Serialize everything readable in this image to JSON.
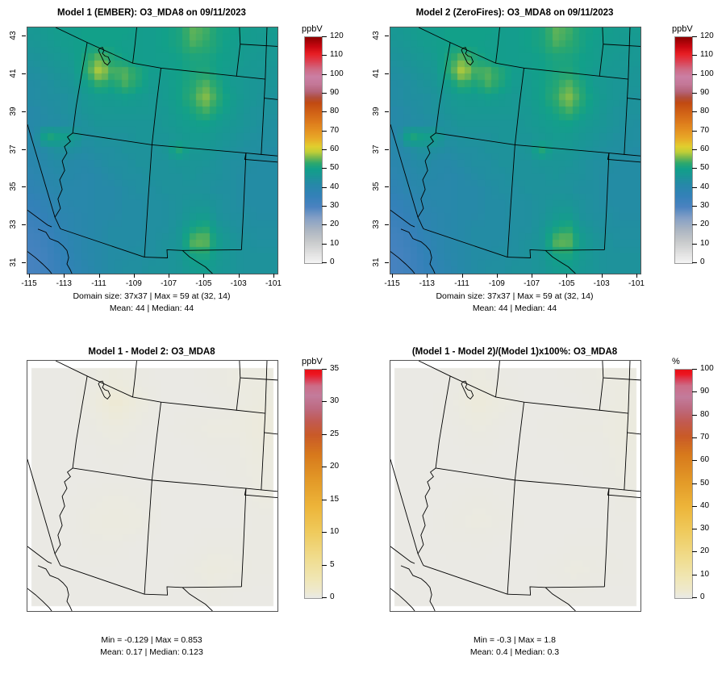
{
  "figure": {
    "description": "Four-panel model comparison maps of O3_MDA8 over the southwestern US"
  },
  "panels": [
    {
      "title": "Model 1 (EMBER): O3_MDA8 on 09/11/2023",
      "stats1": "Domain size: 37x37 | Max = 59 at (32, 14)",
      "stats2": "Mean: 44 |  Median: 44",
      "unit": "ppbV"
    },
    {
      "title": "Model 2 (ZeroFires): O3_MDA8 on 09/11/2023",
      "stats1": "Domain size: 37x37 | Max = 59 at (32, 14)",
      "stats2": "Mean: 44 |  Median: 44",
      "unit": "ppbV"
    },
    {
      "title": "Model 1 - Model 2: O3_MDA8",
      "stats1": "Min = -0.129 | Max = 0.853",
      "stats2": "Mean: 0.17 |  Median: 0.123",
      "unit": "ppbV"
    },
    {
      "title": "(Model 1 - Model 2)/(Model 1)x100%: O3_MDA8",
      "stats1": "Min = -0.3 | Max = 1.8",
      "stats2": "Mean: 0.4 |  Median: 0.3",
      "unit": "%"
    }
  ],
  "axes": {
    "x_labels": [
      "-115",
      "-113",
      "-111",
      "-109",
      "-107",
      "-105",
      "-103",
      "-101"
    ],
    "x_values": [
      -115,
      -113,
      -111,
      -109,
      -107,
      -105,
      -103,
      -101
    ],
    "y_labels": [
      "31",
      "33",
      "35",
      "37",
      "39",
      "41",
      "43"
    ],
    "y_values": [
      31,
      33,
      35,
      37,
      39,
      41,
      43
    ]
  },
  "chart_data": [
    {
      "type": "heatmap",
      "title": "Model 1 (EMBER): O3_MDA8 on 09/11/2023",
      "unit": "ppbV",
      "vmin": 0,
      "vmax": 120,
      "cbar_ticks": [
        0,
        10,
        20,
        30,
        40,
        50,
        60,
        70,
        80,
        90,
        100,
        110,
        120
      ],
      "grid": "o3",
      "colormap_ref": "o3",
      "stats": {
        "domain_size": "37x37",
        "max": 59,
        "max_at": "(32, 14)",
        "mean": 44,
        "median": 44
      },
      "x_range": [
        -115,
        -101
      ],
      "y_range": [
        31,
        43
      ]
    },
    {
      "type": "heatmap",
      "title": "Model 2 (ZeroFires): O3_MDA8 on 09/11/2023",
      "unit": "ppbV",
      "vmin": 0,
      "vmax": 120,
      "cbar_ticks": [
        0,
        10,
        20,
        30,
        40,
        50,
        60,
        70,
        80,
        90,
        100,
        110,
        120
      ],
      "grid": "o3",
      "colormap_ref": "o3",
      "stats": {
        "domain_size": "37x37",
        "max": 59,
        "max_at": "(32, 14)",
        "mean": 44,
        "median": 44
      },
      "x_range": [
        -115,
        -101
      ],
      "y_range": [
        31,
        43
      ]
    },
    {
      "type": "heatmap",
      "title": "Model 1 - Model 2: O3_MDA8",
      "unit": "ppbV",
      "vmin": 0,
      "vmax": 35,
      "cbar_ticks": [
        0,
        5,
        10,
        15,
        20,
        25,
        30,
        35
      ],
      "grid": "diff",
      "colormap_ref": "diff",
      "stats": {
        "min": -0.129,
        "max": 0.853,
        "mean": 0.17,
        "median": 0.123
      }
    },
    {
      "type": "heatmap",
      "title": "(Model 1 - Model 2)/(Model 1)x100%: O3_MDA8",
      "unit": "%",
      "vmin": 0,
      "vmax": 100,
      "cbar_ticks": [
        0,
        10,
        20,
        30,
        40,
        50,
        60,
        70,
        80,
        90,
        100
      ],
      "grid": "pct",
      "colormap_ref": "pct",
      "stats": {
        "min": -0.3,
        "max": 1.8,
        "mean": 0.4,
        "median": 0.3
      }
    }
  ],
  "colormaps": {
    "o3": [
      [
        0,
        "#f4f4f4"
      ],
      [
        6,
        "#dedede"
      ],
      [
        12,
        "#c6c8ca"
      ],
      [
        18,
        "#aab4c2"
      ],
      [
        24,
        "#84a0c6"
      ],
      [
        30,
        "#4a82c0"
      ],
      [
        36,
        "#3381b8"
      ],
      [
        42,
        "#2689a8"
      ],
      [
        46,
        "#1b9597"
      ],
      [
        50,
        "#12a089"
      ],
      [
        53,
        "#2ca86e"
      ],
      [
        56,
        "#76b84e"
      ],
      [
        59,
        "#c0cf38"
      ],
      [
        62,
        "#e2ce2e"
      ],
      [
        66,
        "#e8ab28"
      ],
      [
        70,
        "#e59422"
      ],
      [
        75,
        "#dd7a1c"
      ],
      [
        80,
        "#d16216"
      ],
      [
        85,
        "#c24a12"
      ],
      [
        88,
        "#b14f3e"
      ],
      [
        91,
        "#b56478"
      ],
      [
        95,
        "#c47898"
      ],
      [
        99,
        "#cb7fa4"
      ],
      [
        103,
        "#cf6a84"
      ],
      [
        107,
        "#dd4052"
      ],
      [
        111,
        "#e81f25"
      ],
      [
        115,
        "#c80710"
      ],
      [
        120,
        "#8c0000"
      ]
    ],
    "diff": [
      [
        0,
        "#e9e9e6"
      ],
      [
        0.5,
        "#eceadc"
      ],
      [
        1,
        "#eee9d0"
      ],
      [
        3,
        "#f0e6b4"
      ],
      [
        6,
        "#f0dd90"
      ],
      [
        10,
        "#efcb5e"
      ],
      [
        14,
        "#edb53a"
      ],
      [
        18,
        "#e39a28"
      ],
      [
        22,
        "#d7791c"
      ],
      [
        25,
        "#c95a28"
      ],
      [
        27,
        "#c25a50"
      ],
      [
        29,
        "#bd6a80"
      ],
      [
        31,
        "#c37c9c"
      ],
      [
        32.5,
        "#cd6d88"
      ],
      [
        33.5,
        "#dd3a50"
      ],
      [
        34.3,
        "#ee1520"
      ],
      [
        35,
        "#e60f15"
      ]
    ],
    "pct": [
      [
        0,
        "#e9e9e6"
      ],
      [
        1.5,
        "#eceadc"
      ],
      [
        3,
        "#eee9d0"
      ],
      [
        9,
        "#f0e6b4"
      ],
      [
        17,
        "#f0dd90"
      ],
      [
        29,
        "#efcb5e"
      ],
      [
        40,
        "#edb53a"
      ],
      [
        51,
        "#e39a28"
      ],
      [
        63,
        "#d7791c"
      ],
      [
        71,
        "#c95a28"
      ],
      [
        77,
        "#c25a50"
      ],
      [
        83,
        "#bd6a80"
      ],
      [
        88,
        "#c37c9c"
      ],
      [
        93,
        "#cd6d88"
      ],
      [
        96,
        "#dd3a50"
      ],
      [
        98,
        "#ee1520"
      ],
      [
        100,
        "#e60f15"
      ]
    ]
  },
  "grids": {
    "o3": [
      [
        47,
        48,
        49,
        49,
        50,
        50,
        50,
        50,
        49,
        49,
        50,
        51,
        55,
        54,
        51,
        50,
        49,
        48,
        48
      ],
      [
        46,
        47,
        48,
        49,
        50,
        50,
        50,
        49,
        49,
        49,
        50,
        51,
        54,
        53,
        51,
        49,
        48,
        48,
        47
      ],
      [
        45,
        46,
        47,
        48,
        52,
        56,
        52,
        50,
        49,
        49,
        49,
        50,
        51,
        51,
        50,
        49,
        48,
        47,
        47
      ],
      [
        44,
        45,
        46,
        47,
        53,
        59,
        54,
        55,
        52,
        49,
        49,
        50,
        51,
        52,
        50,
        48,
        47,
        47,
        46
      ],
      [
        43,
        44,
        45,
        46,
        49,
        53,
        51,
        54,
        51,
        48,
        48,
        50,
        52,
        55,
        52,
        48,
        47,
        46,
        46
      ],
      [
        43,
        44,
        44,
        45,
        47,
        48,
        48,
        49,
        48,
        47,
        48,
        50,
        53,
        57,
        53,
        49,
        47,
        46,
        45
      ],
      [
        42,
        43,
        44,
        45,
        46,
        47,
        47,
        47,
        47,
        47,
        47,
        49,
        51,
        54,
        51,
        48,
        46,
        45,
        45
      ],
      [
        42,
        43,
        43,
        44,
        45,
        46,
        46,
        46,
        46,
        46,
        47,
        48,
        49,
        50,
        48,
        47,
        46,
        45,
        44
      ],
      [
        41,
        52,
        50,
        48,
        44,
        45,
        45,
        45,
        46,
        46,
        46,
        47,
        48,
        48,
        47,
        46,
        45,
        44,
        44
      ],
      [
        41,
        43,
        45,
        44,
        43,
        44,
        44,
        45,
        45,
        45,
        46,
        52,
        47,
        47,
        46,
        45,
        44,
        44,
        43
      ],
      [
        40,
        42,
        43,
        42,
        42,
        43,
        44,
        44,
        45,
        45,
        45,
        46,
        46,
        46,
        45,
        44,
        44,
        43,
        43
      ],
      [
        39,
        41,
        42,
        42,
        41,
        42,
        43,
        44,
        44,
        45,
        45,
        45,
        46,
        45,
        45,
        44,
        43,
        43,
        43
      ],
      [
        38,
        40,
        41,
        41,
        41,
        42,
        42,
        43,
        44,
        44,
        45,
        45,
        45,
        45,
        44,
        44,
        43,
        43,
        43
      ],
      [
        36,
        38,
        40,
        41,
        41,
        42,
        42,
        43,
        43,
        44,
        44,
        45,
        46,
        46,
        45,
        44,
        43,
        43,
        43
      ],
      [
        35,
        37,
        39,
        40,
        41,
        42,
        42,
        43,
        43,
        44,
        44,
        45,
        47,
        48,
        45,
        44,
        44,
        43,
        43
      ],
      [
        33,
        35,
        38,
        40,
        41,
        42,
        43,
        43,
        43,
        44,
        44,
        46,
        50,
        53,
        47,
        45,
        44,
        44,
        44
      ],
      [
        32,
        34,
        37,
        39,
        41,
        42,
        43,
        43,
        43,
        44,
        45,
        46,
        55,
        56,
        49,
        46,
        45,
        44,
        44
      ],
      [
        31,
        33,
        36,
        39,
        41,
        42,
        43,
        43,
        44,
        44,
        45,
        46,
        51,
        52,
        48,
        46,
        45,
        45,
        45
      ],
      [
        31,
        33,
        35,
        38,
        40,
        42,
        43,
        44,
        44,
        45,
        45,
        46,
        48,
        49,
        47,
        46,
        45,
        45,
        45
      ]
    ],
    "diff": [
      [
        0.1,
        0.1,
        0.2,
        0.4,
        0.2,
        0.1,
        0.1,
        0.2,
        0.3,
        0.3
      ],
      [
        0.1,
        0.1,
        0.3,
        0.85,
        0.4,
        0.1,
        0.1,
        0.1,
        0.2,
        0.4
      ],
      [
        0.1,
        0.1,
        0.2,
        0.4,
        0.2,
        0.1,
        0.2,
        0.3,
        0.3,
        0.5
      ],
      [
        0.1,
        0.1,
        0.1,
        0.2,
        0.1,
        0.1,
        0.1,
        0.2,
        0.2,
        0.4
      ],
      [
        0.1,
        0.1,
        0.1,
        0.1,
        0.1,
        0.1,
        0.1,
        0.1,
        0.2,
        0.3
      ],
      [
        0.1,
        0.1,
        0.2,
        0.3,
        0.2,
        0.1,
        0.1,
        0.1,
        0.1,
        0.3
      ],
      [
        0.1,
        0.1,
        0.3,
        0.4,
        0.3,
        0.1,
        0.1,
        0.1,
        0.1,
        0.2
      ],
      [
        0.1,
        0.1,
        0.2,
        0.2,
        0.1,
        0.1,
        0.1,
        0.2,
        0.2,
        0.2
      ],
      [
        0.1,
        0.1,
        0.1,
        0.1,
        0.1,
        0.1,
        0.2,
        0.4,
        0.3,
        0.2
      ],
      [
        0.1,
        0.1,
        0.1,
        0.1,
        0.1,
        0.1,
        0.1,
        0.2,
        0.1,
        0.1
      ]
    ],
    "pct": [
      [
        0.3,
        0.3,
        0.5,
        0.9,
        0.5,
        0.3,
        0.3,
        0.5,
        0.8,
        0.8
      ],
      [
        0.3,
        0.3,
        0.7,
        1.8,
        0.9,
        0.3,
        0.3,
        0.3,
        0.5,
        1.0
      ],
      [
        0.3,
        0.3,
        0.5,
        0.9,
        0.5,
        0.3,
        0.5,
        0.7,
        0.7,
        1.2
      ],
      [
        0.3,
        0.3,
        0.3,
        0.5,
        0.3,
        0.3,
        0.3,
        0.5,
        0.5,
        1.0
      ],
      [
        0.3,
        0.3,
        0.3,
        0.3,
        0.3,
        0.3,
        0.3,
        0.3,
        0.5,
        0.8
      ],
      [
        0.3,
        0.3,
        0.5,
        0.7,
        0.5,
        0.3,
        0.3,
        0.3,
        0.3,
        0.7
      ],
      [
        0.3,
        0.3,
        0.7,
        0.9,
        0.7,
        0.3,
        0.3,
        0.3,
        0.3,
        0.5
      ],
      [
        0.3,
        0.3,
        0.5,
        0.5,
        0.3,
        0.3,
        0.3,
        0.5,
        0.5,
        0.5
      ],
      [
        0.3,
        0.3,
        0.3,
        0.3,
        0.3,
        0.3,
        0.5,
        0.9,
        0.7,
        0.5
      ],
      [
        0.3,
        0.3,
        0.3,
        0.3,
        0.3,
        0.3,
        0.3,
        0.5,
        0.3,
        0.3
      ]
    ]
  }
}
